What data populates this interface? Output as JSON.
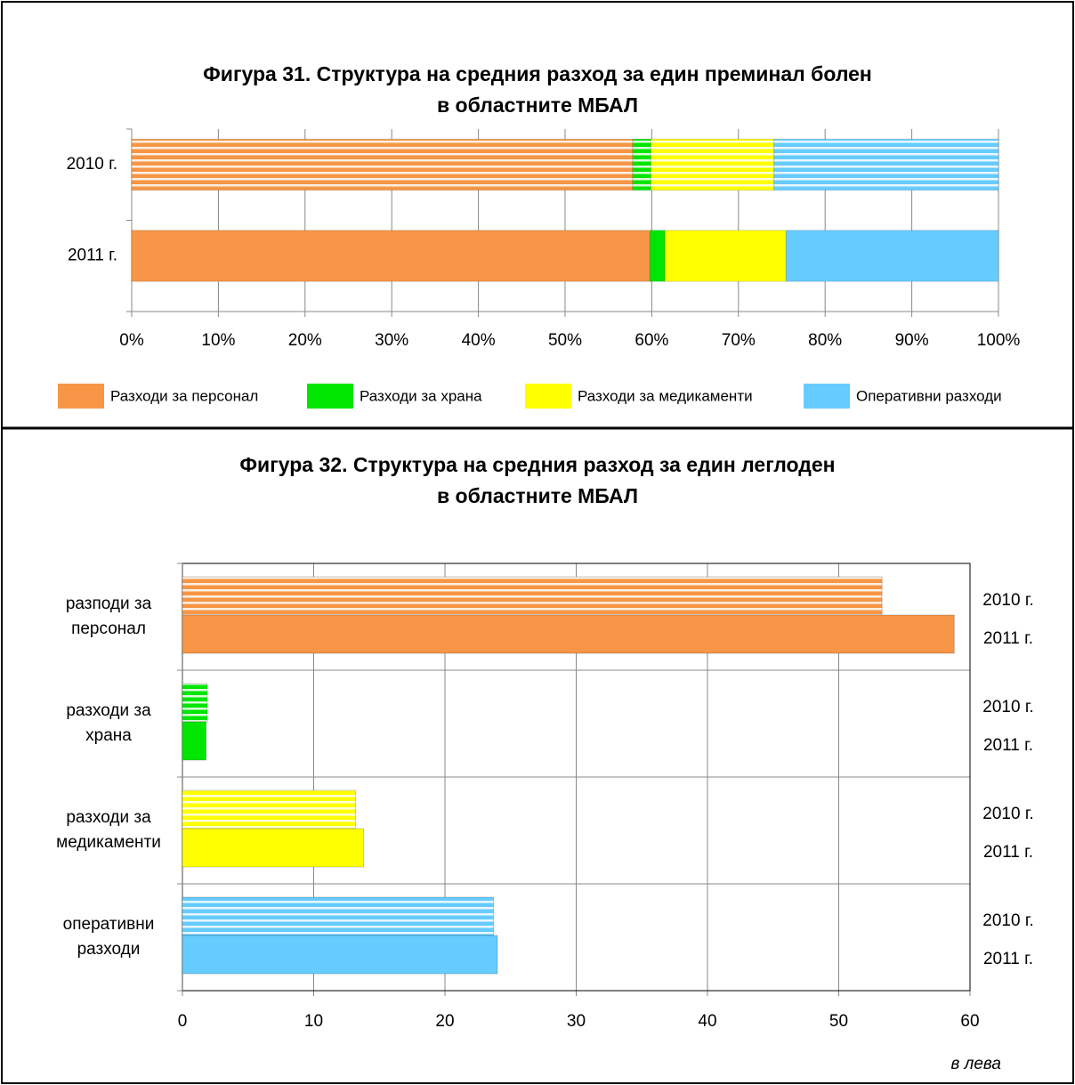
{
  "chart_data": [
    {
      "type": "stacked_bar_h",
      "title": "Фигура 31. Структура на средния разход за един преминал болен\nв областните МБАЛ",
      "categories": [
        "2010 г.",
        "2011 г."
      ],
      "striped": [
        true,
        false
      ],
      "series": [
        {
          "name": "Разходи за персонал",
          "color": "#f79646",
          "values": [
            57.8,
            59.8
          ]
        },
        {
          "name": "Разходи за храна",
          "color": "#00e600",
          "values": [
            2.1,
            1.7
          ]
        },
        {
          "name": "Разходи за медикаменти",
          "color": "#ffff00",
          "values": [
            14.2,
            14.0
          ]
        },
        {
          "name": "Оперативни разходи",
          "color": "#66ccff",
          "values": [
            25.9,
            24.5
          ]
        }
      ],
      "xlim": [
        0,
        100
      ],
      "xticks": [
        {
          "value": 0,
          "label": "0%"
        },
        {
          "value": 10,
          "label": "10%"
        },
        {
          "value": 20,
          "label": "20%"
        },
        {
          "value": 30,
          "label": "30%"
        },
        {
          "value": 40,
          "label": "40%"
        },
        {
          "value": 50,
          "label": "50%"
        },
        {
          "value": 60,
          "label": "60%"
        },
        {
          "value": 70,
          "label": "70%"
        },
        {
          "value": 80,
          "label": "80%"
        },
        {
          "value": 90,
          "label": "90%"
        },
        {
          "value": 100,
          "label": "100%"
        }
      ],
      "grid": true,
      "legend": "bottom"
    },
    {
      "type": "grouped_bar_h",
      "title": "Фигура 32. Структура на средния разход за един леглоден\nв областните МБАЛ",
      "categories": [
        "разподи за\nперсонал",
        "разходи за\nхрана",
        "разходи за\nмедикаменти",
        "оперативни\nразходи"
      ],
      "colors": [
        "#f79646",
        "#00e600",
        "#ffff00",
        "#66ccff"
      ],
      "series": [
        {
          "name": "2010 г.",
          "striped": true,
          "values": [
            53.3,
            1.9,
            13.2,
            23.7
          ]
        },
        {
          "name": "2011 г.",
          "striped": false,
          "values": [
            58.8,
            1.8,
            13.8,
            24.0
          ]
        }
      ],
      "xlim": [
        0,
        60
      ],
      "xticks": [
        0,
        10,
        20,
        30,
        40,
        50,
        60
      ],
      "xlabel": "в лева",
      "grid": true
    }
  ]
}
